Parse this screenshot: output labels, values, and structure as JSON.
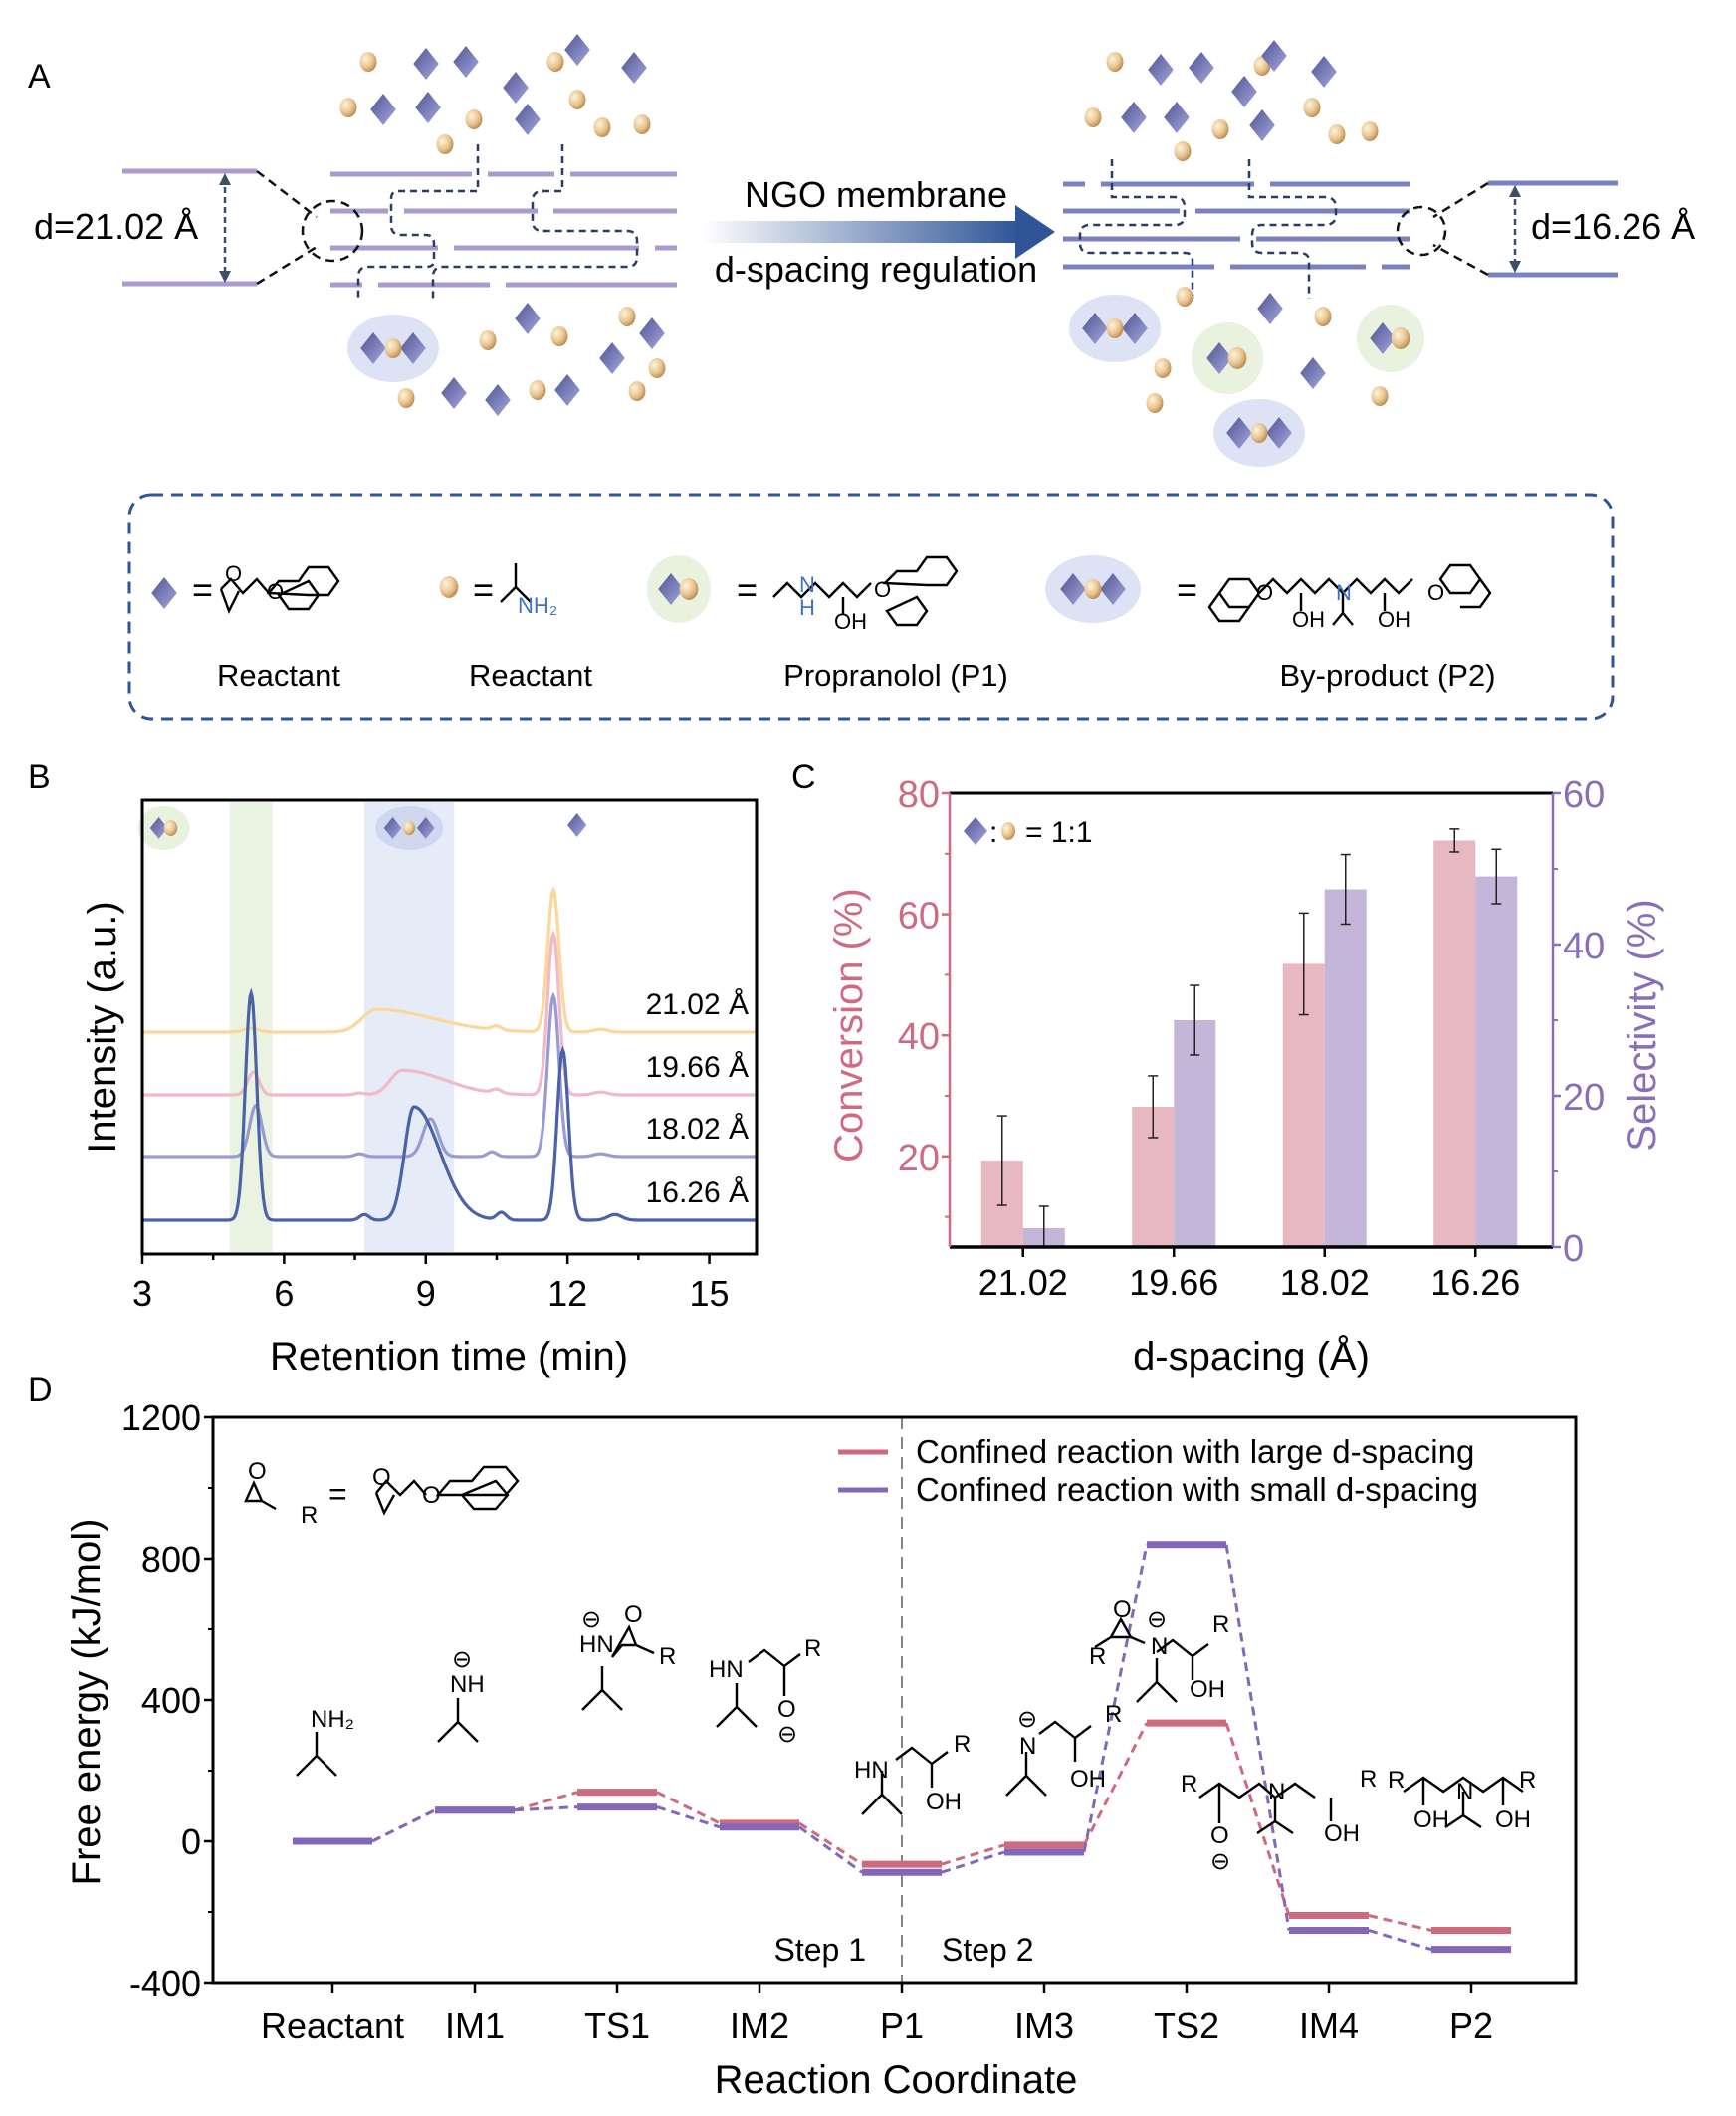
{
  "figure": {
    "panels": [
      "A",
      "B",
      "C",
      "D"
    ]
  },
  "panel_a": {
    "label": "A",
    "left_d_spacing": "d=21.02 Å",
    "right_d_spacing": "d=16.26 Å",
    "arrow_top_text": "NGO membrane",
    "arrow_bottom_text": "d-spacing regulation",
    "colors": {
      "membrane": "#a99ad0",
      "membrane_dense": "#7b82c4",
      "diamond": "#7b7fbf",
      "sphere": "#e6c08a",
      "p1_halo": "#e8f2df",
      "p2_halo": "#dde3f4",
      "arrow": "#2f5597"
    },
    "legend": {
      "items": [
        {
          "symbol": "diamond",
          "name": "Reactant",
          "structure": "glycidyl 1-naphthyl ether"
        },
        {
          "symbol": "sphere",
          "name": "Reactant",
          "structure_label": "NH2"
        },
        {
          "symbol": "diamond-sphere",
          "name": "Propranolol (P1)",
          "atoms": [
            "N",
            "H",
            "OH",
            "O"
          ]
        },
        {
          "symbol": "diamond-sphere-diamond",
          "name": "By-product (P2)",
          "atoms": [
            "O",
            "OH",
            "N",
            "OH",
            "O"
          ]
        }
      ],
      "equals": "="
    }
  },
  "chart_data": [
    {
      "panel": "B",
      "type": "line",
      "xlabel": "Retention time (min)",
      "ylabel": "Intensity (a.u.)",
      "xlim": [
        3,
        16
      ],
      "xticks": [
        3,
        6,
        9,
        12,
        15
      ],
      "highlight_bands": [
        {
          "from": 4.85,
          "to": 5.75,
          "color": "#eaf3e1",
          "marker": "diamond-sphere (P1)"
        },
        {
          "from": 7.7,
          "to": 9.6,
          "color": "#e5ebf7",
          "marker": "diamond-sphere-diamond (P2)"
        }
      ],
      "top_marker": {
        "at": 12.2,
        "symbol": "diamond (reactant)"
      },
      "series": [
        {
          "name": "21.02 Å",
          "color": "#fcd69a",
          "offset": 3,
          "peaks": [
            {
              "x": 5.3,
              "h": 0.02,
              "w": 0.15
            },
            {
              "x": 7.95,
              "h": 0.12,
              "w": 0.3,
              "tail": 1.2
            },
            {
              "x": 10.5,
              "h": 0.02,
              "w": 0.1
            },
            {
              "x": 11.7,
              "h": 0.75,
              "w": 0.12
            },
            {
              "x": 12.7,
              "h": 0.015,
              "w": 0.15
            }
          ]
        },
        {
          "name": "19.66 Å",
          "color": "#f2b9c6",
          "offset": 2,
          "peaks": [
            {
              "x": 5.35,
              "h": 0.12,
              "w": 0.12
            },
            {
              "x": 7.6,
              "h": 0.01,
              "w": 0.1
            },
            {
              "x": 8.5,
              "h": 0.13,
              "w": 0.25,
              "tail": 0.9
            },
            {
              "x": 10.5,
              "h": 0.02,
              "w": 0.1
            },
            {
              "x": 11.7,
              "h": 0.85,
              "w": 0.12
            },
            {
              "x": 12.7,
              "h": 0.015,
              "w": 0.15
            }
          ]
        },
        {
          "name": "18.02 Å",
          "color": "#9a9bd3",
          "offset": 1,
          "peaks": [
            {
              "x": 5.4,
              "h": 0.27,
              "w": 0.13
            },
            {
              "x": 7.6,
              "h": 0.015,
              "w": 0.1
            },
            {
              "x": 9.1,
              "h": 0.2,
              "w": 0.16
            },
            {
              "x": 10.4,
              "h": 0.025,
              "w": 0.1
            },
            {
              "x": 11.7,
              "h": 0.85,
              "w": 0.12
            },
            {
              "x": 12.7,
              "h": 0.015,
              "w": 0.15
            }
          ]
        },
        {
          "name": "16.26 Å",
          "color": "#4a62a8",
          "offset": 0,
          "peaks": [
            {
              "x": 5.3,
              "h": 1.2,
              "w": 0.12
            },
            {
              "x": 7.7,
              "h": 0.03,
              "w": 0.1
            },
            {
              "x": 8.75,
              "h": 0.6,
              "w": 0.2,
              "tail": 0.55
            },
            {
              "x": 10.6,
              "h": 0.04,
              "w": 0.1
            },
            {
              "x": 11.9,
              "h": 0.9,
              "w": 0.12
            },
            {
              "x": 13.0,
              "h": 0.03,
              "w": 0.15
            }
          ]
        }
      ]
    },
    {
      "panel": "C",
      "type": "bar",
      "xlabel": "d-spacing (Å)",
      "categories": [
        "21.02",
        "19.66",
        "18.02",
        "16.26"
      ],
      "legend_text": "= 1:1",
      "left_axis": {
        "label": "Conversion (%)",
        "ylim": [
          5,
          80
        ],
        "ticks": [
          20,
          40,
          60,
          80
        ],
        "color": "#d06a82"
      },
      "right_axis": {
        "label": "Selectivity (%)",
        "ylim": [
          0,
          60
        ],
        "ticks": [
          0,
          20,
          40,
          60
        ],
        "color": "#8a6fb8"
      },
      "series": [
        {
          "name": "Conversion (%)",
          "axis": "left",
          "color": "#e8b8c2",
          "values": [
            19.3,
            28.2,
            51.8,
            72.2
          ],
          "errors": [
            7.4,
            5.1,
            8.4,
            1.9
          ]
        },
        {
          "name": "Selectivity (%)",
          "axis": "right",
          "color": "#c4b6d8",
          "values": [
            2.5,
            30.0,
            47.3,
            49.0
          ],
          "errors": [
            2.9,
            4.6,
            4.6,
            3.6
          ]
        }
      ]
    },
    {
      "panel": "D",
      "type": "line",
      "subtype": "energy-profile",
      "xlabel": "Reaction Coordinate",
      "ylabel": "Free energy (kJ/mol)",
      "ylim": [
        -400,
        1200
      ],
      "yticks": [
        -400,
        0,
        400,
        800,
        1200
      ],
      "categories": [
        "Reactant",
        "IM1",
        "TS1",
        "IM2",
        "P1",
        "IM3",
        "TS2",
        "IM4",
        "P2"
      ],
      "step_divider_after": "P1",
      "step_labels": [
        "Step 1",
        "Step 2"
      ],
      "inset_label": "R",
      "series": [
        {
          "name": "Confined reaction with large d-spacing",
          "color": "#cf6a7e",
          "values": [
            0,
            88,
            139,
            51,
            -65,
            -11,
            335,
            -210,
            -252
          ]
        },
        {
          "name": "Confined reaction with small d-spacing",
          "color": "#8467b8",
          "values": [
            0,
            88,
            97,
            40,
            -88,
            -31,
            840,
            -252,
            -306
          ]
        }
      ],
      "legend_position": "top-right",
      "structure_labels": {
        "Reactant": [
          "NH2"
        ],
        "IM1": [
          "⊖",
          "NH"
        ],
        "TS1": [
          "⊖",
          "HN",
          "O",
          "R"
        ],
        "IM2": [
          "HN",
          "R",
          "O",
          "⊖"
        ],
        "P1": [
          "HN",
          "R",
          "OH"
        ],
        "IM3": [
          "⊖",
          "N",
          "R",
          "OH"
        ],
        "TS2": [
          "O",
          "⊖",
          "R",
          "N",
          "R",
          "OH"
        ],
        "IM4": [
          "R",
          "N",
          "R",
          "O",
          "⊖",
          "OH"
        ],
        "P2": [
          "R",
          "N",
          "R",
          "OH",
          "OH"
        ]
      }
    }
  ]
}
